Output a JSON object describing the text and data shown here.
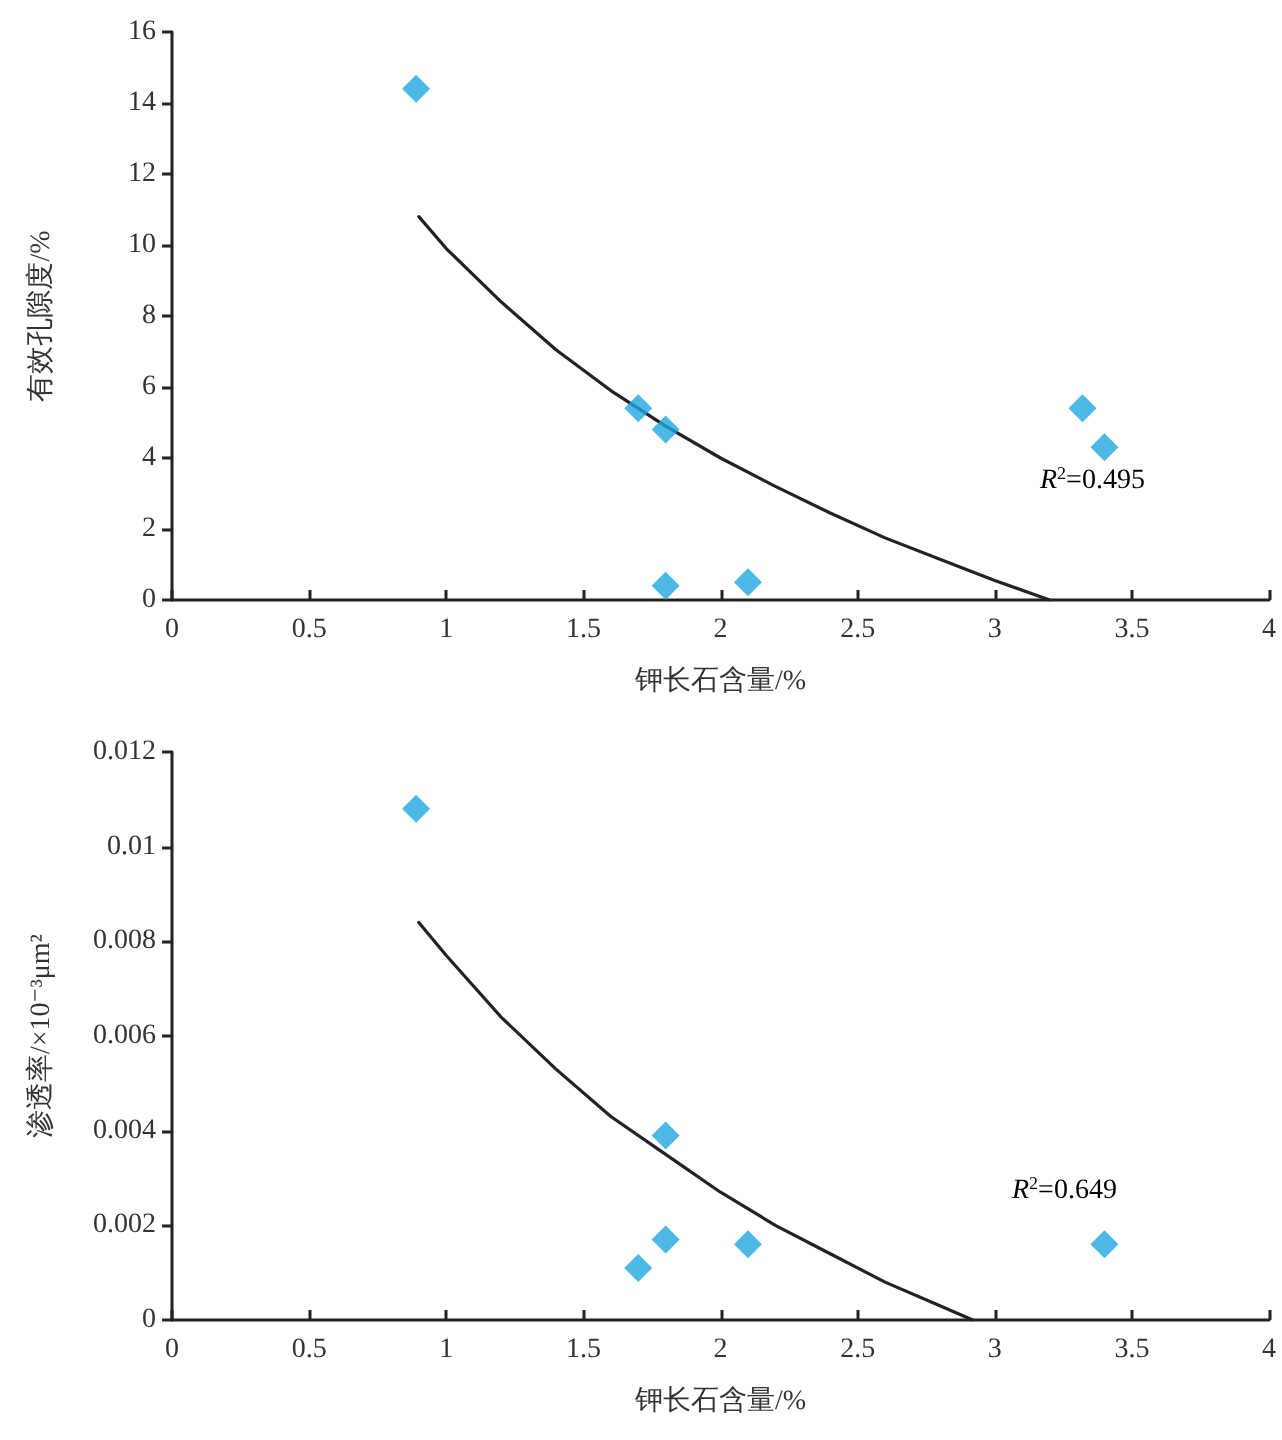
{
  "chart_data": [
    {
      "type": "scatter",
      "xlabel": "钾长石含量/%",
      "ylabel": "有效孔隙度/%",
      "xlim": [
        0,
        4
      ],
      "xticks": [
        0,
        0.5,
        1,
        1.5,
        2,
        2.5,
        3,
        3.5,
        4
      ],
      "ylim": [
        0,
        16
      ],
      "yticks": [
        0,
        2,
        4,
        6,
        8,
        10,
        12,
        14,
        16
      ],
      "grid": false,
      "marker": "diamond",
      "series": [
        {
          "type": "scatter",
          "color": "#1ea6e0",
          "x": [
            0.89,
            1.7,
            1.8,
            1.8,
            2.1,
            3.32,
            3.4
          ],
          "values": [
            14.4,
            5.4,
            4.8,
            0.4,
            0.5,
            5.4,
            4.3
          ]
        },
        {
          "type": "line",
          "color": "#222222",
          "marker": "none",
          "line_style": "solid",
          "x": [
            0.9,
            1.0,
            1.2,
            1.4,
            1.6,
            1.8,
            2.0,
            2.2,
            2.4,
            2.6,
            2.8,
            3.0,
            3.2
          ],
          "values": [
            10.8,
            9.9,
            8.4,
            7.05,
            5.9,
            4.9,
            4.0,
            3.2,
            2.45,
            1.75,
            1.15,
            0.55,
            0
          ]
        }
      ],
      "annotations": [
        "R$^{2}$=0.495"
      ]
    },
    {
      "type": "scatter",
      "xlabel": "钾长石含量/%",
      "ylabel": "渗透率/×10⁻³μm²",
      "xlim": [
        0,
        4
      ],
      "xticks": [
        0,
        0.5,
        1,
        1.5,
        2,
        2.5,
        3,
        3.5,
        4
      ],
      "ylim": [
        0,
        0.012
      ],
      "yticks": [
        0,
        0.002,
        0.004,
        0.006,
        0.008,
        0.01,
        0.012
      ],
      "grid": false,
      "marker": "diamond",
      "series": [
        {
          "type": "scatter",
          "color": "#1ea6e0",
          "x": [
            0.89,
            1.8,
            1.8,
            1.7,
            2.1,
            3.4
          ],
          "values": [
            0.0108,
            0.0039,
            0.0017,
            0.0011,
            0.0016,
            0.0016
          ]
        },
        {
          "type": "line",
          "color": "#222222",
          "marker": "none",
          "line_style": "solid",
          "x": [
            0.9,
            1.0,
            1.2,
            1.4,
            1.6,
            1.8,
            2.0,
            2.2,
            2.4,
            2.6,
            2.8,
            2.92
          ],
          "values": [
            0.0084,
            0.0077,
            0.0064,
            0.0053,
            0.0043,
            0.0035,
            0.0027,
            0.002,
            0.0014,
            0.0008,
            0.0003,
            0
          ]
        }
      ],
      "annotations": [
        "R$^{2}$=0.649"
      ]
    }
  ]
}
